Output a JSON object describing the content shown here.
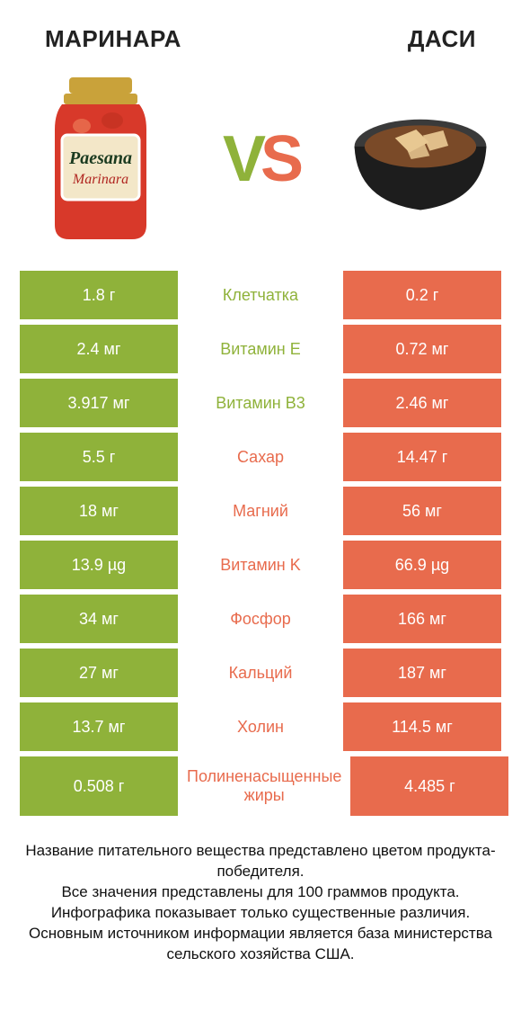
{
  "header": {
    "left_title": "МАРИНАРА",
    "right_title": "ДАСИ"
  },
  "vs": {
    "v": "V",
    "s": "S",
    "v_color": "#8fb23a",
    "s_color": "#e86b4d"
  },
  "colors": {
    "green": "#8fb23a",
    "orange": "#e86b4d",
    "mid_green_text": "#8fb23a",
    "mid_orange_text": "#e86b4d",
    "row_gap_bg": "#ffffff"
  },
  "left_image": {
    "name": "marinara-jar",
    "jar_body": "#d8392a",
    "lid": "#c9a23a",
    "label_bg": "#f3e7c8",
    "label_border": "#ffffff",
    "brand_text": "Paesana",
    "brand_color": "#1a3a1f",
    "sub_text": "Marinara",
    "sub_color": "#b02520"
  },
  "right_image": {
    "name": "dashi-bowl",
    "bowl_outer": "#1d1d1d",
    "bowl_rim": "#3a3a3a",
    "broth": "#7a4a28",
    "tofu": "#e8c892"
  },
  "rows": [
    {
      "nutrient": "Клетчатка",
      "left": "1.8 г",
      "right": "0.2 г",
      "winner": "left"
    },
    {
      "nutrient": "Витамин E",
      "left": "2.4 мг",
      "right": "0.72 мг",
      "winner": "left"
    },
    {
      "nutrient": "Витамин B3",
      "left": "3.917 мг",
      "right": "2.46 мг",
      "winner": "left"
    },
    {
      "nutrient": "Сахар",
      "left": "5.5 г",
      "right": "14.47 г",
      "winner": "right"
    },
    {
      "nutrient": "Магний",
      "left": "18 мг",
      "right": "56 мг",
      "winner": "right"
    },
    {
      "nutrient": "Витамин K",
      "left": "13.9 µg",
      "right": "66.9 µg",
      "winner": "right"
    },
    {
      "nutrient": "Фосфор",
      "left": "34 мг",
      "right": "166 мг",
      "winner": "right"
    },
    {
      "nutrient": "Кальций",
      "left": "27 мг",
      "right": "187 мг",
      "winner": "right"
    },
    {
      "nutrient": "Холин",
      "left": "13.7 мг",
      "right": "114.5 мг",
      "winner": "right"
    },
    {
      "nutrient": "Полиненасыщенные жиры",
      "left": "0.508 г",
      "right": "4.485 г",
      "winner": "right"
    }
  ],
  "footnote_lines": [
    "Название питательного вещества представлено цветом продукта-победителя.",
    "Все значения представлены для 100 граммов продукта.",
    "Инфографика показывает только существенные различия.",
    "Основным источником информации является база министерства сельского хозяйства США."
  ]
}
